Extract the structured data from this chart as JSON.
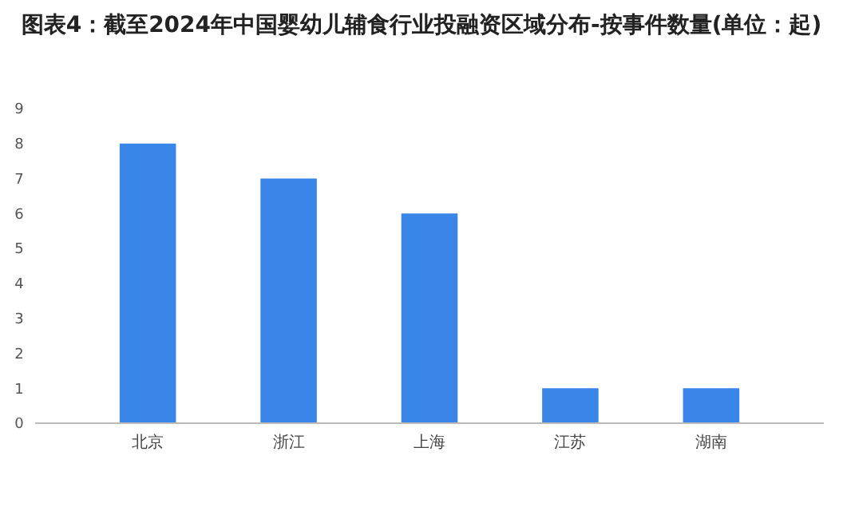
{
  "chart_data": {
    "type": "bar",
    "title": "图表4：截至2024年中国婴幼儿辅食行业投融资区域分布-按事件数量(单位：起)",
    "categories": [
      "北京",
      "浙江",
      "上海",
      "江苏",
      "湖南"
    ],
    "values": [
      8,
      7,
      6,
      1,
      1
    ],
    "color": "#3a86e8",
    "ylim": [
      0,
      9
    ],
    "yticks": [
      0,
      1,
      2,
      3,
      4,
      5,
      6,
      7,
      8,
      9
    ],
    "grid": false
  }
}
